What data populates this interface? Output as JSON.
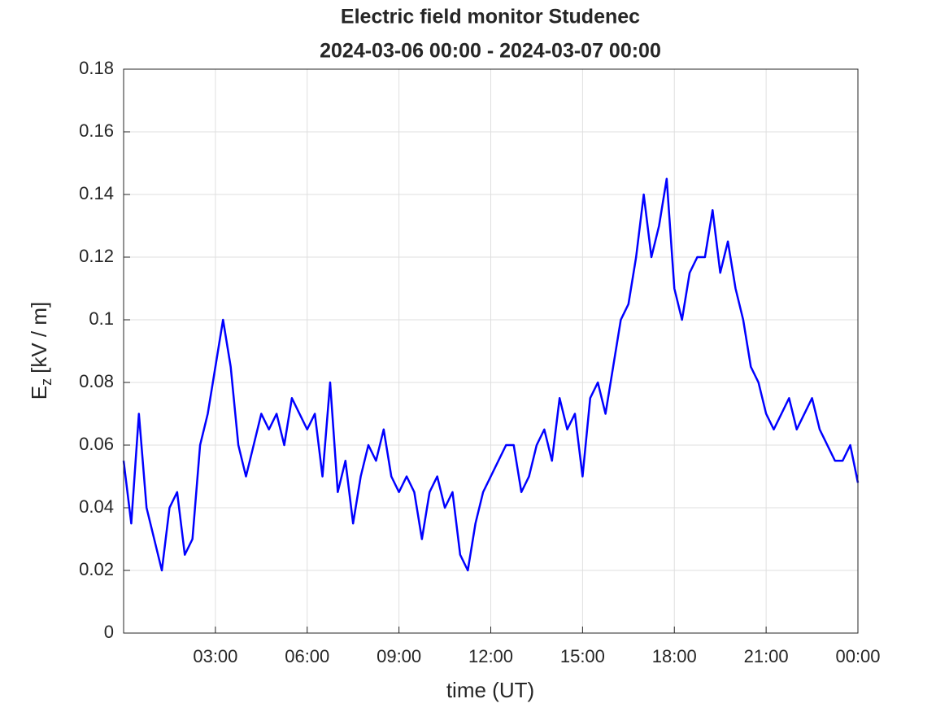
{
  "chart_data": {
    "type": "line",
    "title": "Electric field monitor Studenec",
    "subtitle": "2024-03-06 00:00 - 2024-03-07 00:00",
    "xlabel": "time (UT)",
    "ylabel": "E",
    "ylabel_subscript": "z",
    "ylabel_unit": "[kV / m]",
    "x": [
      0,
      0.25,
      0.5,
      0.75,
      1,
      1.25,
      1.5,
      1.75,
      2,
      2.25,
      2.5,
      2.75,
      3,
      3.25,
      3.5,
      3.75,
      4,
      4.25,
      4.5,
      4.75,
      5,
      5.25,
      5.5,
      5.75,
      6,
      6.25,
      6.5,
      6.75,
      7,
      7.25,
      7.5,
      7.75,
      8,
      8.25,
      8.5,
      8.75,
      9,
      9.25,
      9.5,
      9.75,
      10,
      10.25,
      10.5,
      10.75,
      11,
      11.25,
      11.5,
      11.75,
      12,
      12.25,
      12.5,
      12.75,
      13,
      13.25,
      13.5,
      13.75,
      14,
      14.25,
      14.5,
      14.75,
      15,
      15.25,
      15.5,
      15.75,
      16,
      16.25,
      16.5,
      16.75,
      17,
      17.25,
      17.5,
      17.75,
      18,
      18.25,
      18.5,
      18.75,
      19,
      19.25,
      19.5,
      19.75,
      20,
      20.25,
      20.5,
      20.75,
      21,
      21.25,
      21.5,
      21.75,
      22,
      22.25,
      22.5,
      22.75,
      23,
      23.25,
      23.5,
      23.75,
      24
    ],
    "series": [
      {
        "name": "Ez",
        "color": "#0000ff",
        "values": [
          0.055,
          0.035,
          0.07,
          0.04,
          0.03,
          0.02,
          0.04,
          0.045,
          0.025,
          0.03,
          0.06,
          0.07,
          0.085,
          0.1,
          0.085,
          0.06,
          0.05,
          0.06,
          0.07,
          0.065,
          0.07,
          0.06,
          0.075,
          0.07,
          0.065,
          0.07,
          0.05,
          0.08,
          0.045,
          0.055,
          0.035,
          0.05,
          0.06,
          0.055,
          0.065,
          0.05,
          0.045,
          0.05,
          0.045,
          0.03,
          0.045,
          0.05,
          0.04,
          0.045,
          0.025,
          0.02,
          0.035,
          0.045,
          0.05,
          0.055,
          0.06,
          0.06,
          0.045,
          0.05,
          0.06,
          0.065,
          0.055,
          0.075,
          0.065,
          0.07,
          0.05,
          0.075,
          0.08,
          0.07,
          0.085,
          0.1,
          0.105,
          0.12,
          0.14,
          0.12,
          0.13,
          0.145,
          0.11,
          0.1,
          0.115,
          0.12,
          0.12,
          0.135,
          0.115,
          0.125,
          0.11,
          0.1,
          0.085,
          0.08,
          0.07,
          0.065,
          0.07,
          0.075,
          0.065,
          0.07,
          0.075,
          0.065,
          0.06,
          0.055,
          0.055,
          0.06,
          0.048
        ]
      }
    ],
    "xlim": [
      0,
      24
    ],
    "xticks": [
      {
        "value": 3,
        "label": "03:00"
      },
      {
        "value": 6,
        "label": "06:00"
      },
      {
        "value": 9,
        "label": "09:00"
      },
      {
        "value": 12,
        "label": "12:00"
      },
      {
        "value": 15,
        "label": "15:00"
      },
      {
        "value": 18,
        "label": "18:00"
      },
      {
        "value": 21,
        "label": "21:00"
      },
      {
        "value": 24,
        "label": "00:00"
      }
    ],
    "ylim": [
      0,
      0.18
    ],
    "yticks": [
      0,
      0.02,
      0.04,
      0.06,
      0.08,
      0.1,
      0.12,
      0.14,
      0.16,
      0.18
    ],
    "grid": true
  }
}
